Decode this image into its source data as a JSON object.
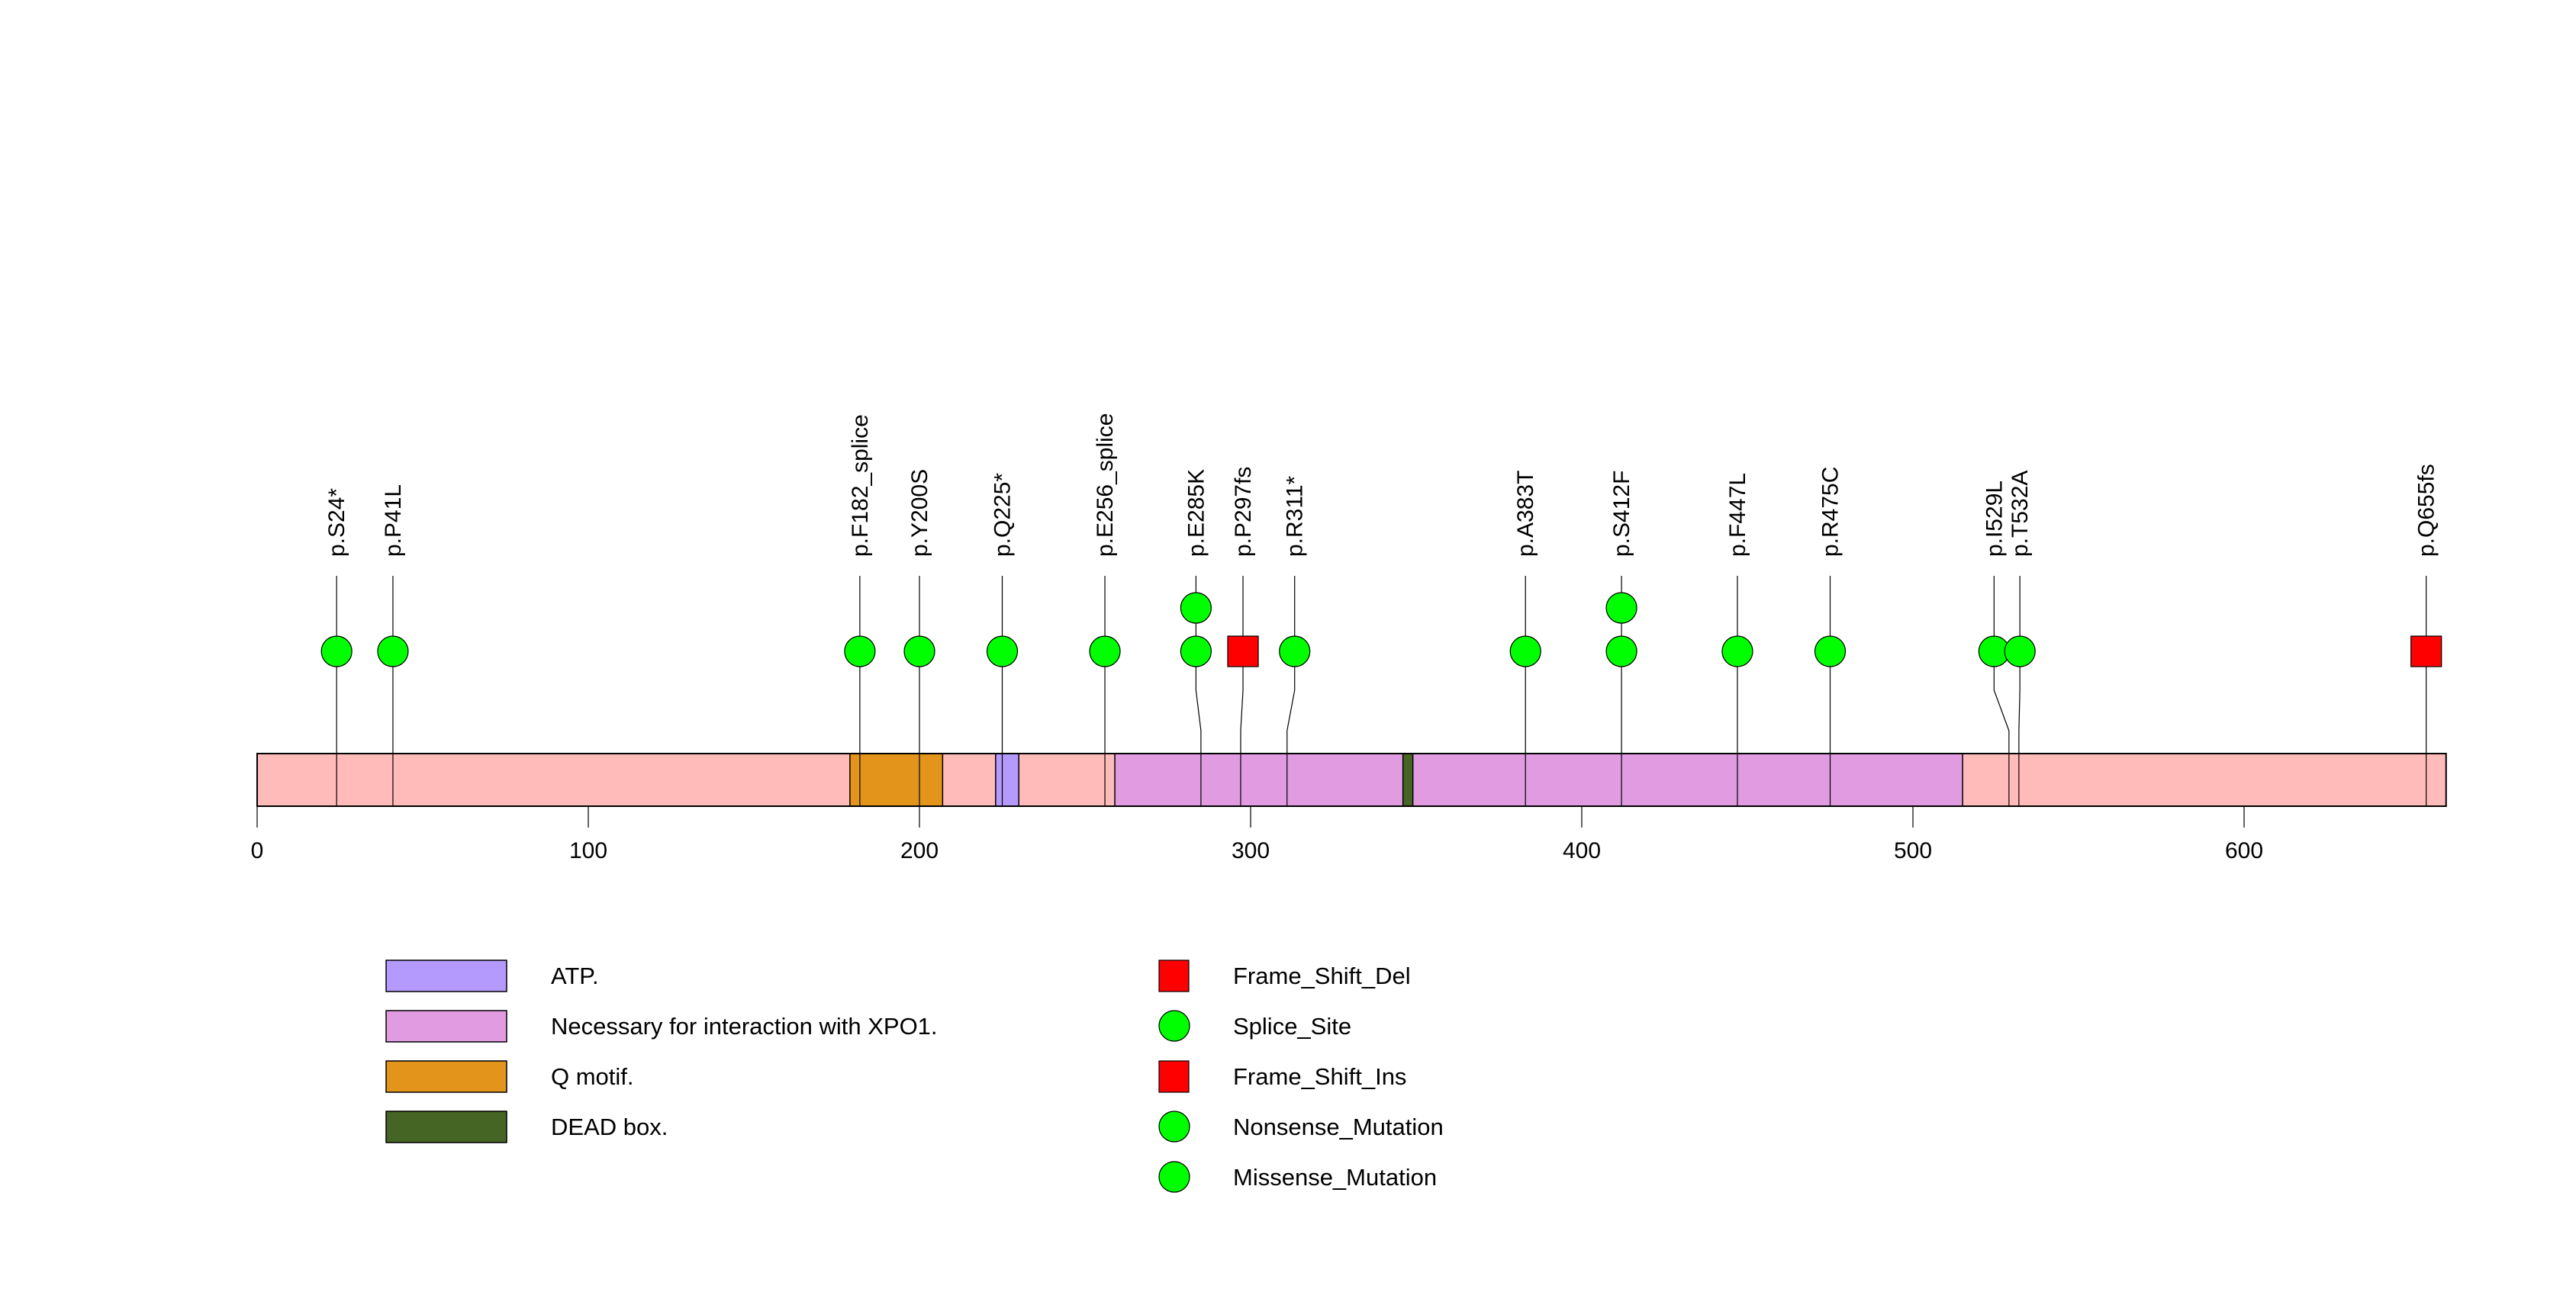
{
  "chart_data": {
    "type": "lollipop",
    "title": "",
    "xlabel": "",
    "ylabel": "",
    "protein_length": 661,
    "xlim": [
      0,
      661
    ],
    "x_ticks": [
      0,
      100,
      200,
      300,
      400,
      500,
      600
    ],
    "x_tick_labels": [
      "0",
      "100",
      "200",
      "300",
      "400",
      "500",
      "600"
    ],
    "backbone_color": "#ffbaba",
    "domains": [
      {
        "name": "Q motif.",
        "start": 179,
        "end": 207,
        "color": "#e3941a"
      },
      {
        "name": "ATP.",
        "start": 223,
        "end": 230,
        "color": "#b39afc"
      },
      {
        "name": "Necessary for interaction with XPO1.",
        "start": 259,
        "end": 515,
        "color": "#e19be1"
      },
      {
        "name": "DEAD box.",
        "start": 346,
        "end": 349,
        "color": "#446523"
      }
    ],
    "mutations": [
      {
        "label": "p.S24*",
        "position": 24,
        "display_position": 24,
        "count": 1,
        "type": "Nonsense_Mutation"
      },
      {
        "label": "p.P41L",
        "position": 41,
        "display_position": 41,
        "count": 1,
        "type": "Missense_Mutation"
      },
      {
        "label": "p.F182_splice",
        "position": 182,
        "display_position": 182,
        "count": 1,
        "type": "Splice_Site"
      },
      {
        "label": "p.Y200S",
        "position": 200,
        "display_position": 200,
        "count": 1,
        "type": "Missense_Mutation"
      },
      {
        "label": "p.Q225*",
        "position": 225,
        "display_position": 225,
        "count": 1,
        "type": "Nonsense_Mutation"
      },
      {
        "label": "p.E256_splice",
        "position": 256,
        "display_position": 256,
        "count": 1,
        "type": "Splice_Site"
      },
      {
        "label": "p.E285K",
        "position": 285,
        "display_position": 283.5,
        "count": 2,
        "type": "Missense_Mutation"
      },
      {
        "label": "p.P297fs",
        "position": 297,
        "display_position": 297.7,
        "count": 1,
        "type": "Frame_Shift_Del"
      },
      {
        "label": "p.R311*",
        "position": 311,
        "display_position": 313.3,
        "count": 1,
        "type": "Nonsense_Mutation"
      },
      {
        "label": "p.A383T",
        "position": 383,
        "display_position": 383,
        "count": 1,
        "type": "Missense_Mutation"
      },
      {
        "label": "p.S412F",
        "position": 412,
        "display_position": 412,
        "count": 2,
        "type": "Missense_Mutation"
      },
      {
        "label": "p.F447L",
        "position": 447,
        "display_position": 447,
        "count": 1,
        "type": "Missense_Mutation"
      },
      {
        "label": "p.R475C",
        "position": 475,
        "display_position": 475,
        "count": 1,
        "type": "Missense_Mutation"
      },
      {
        "label": "p.I529L",
        "position": 529,
        "display_position": 524.5,
        "count": 1,
        "type": "Missense_Mutation"
      },
      {
        "label": "p.T532A",
        "position": 532,
        "display_position": 532.3,
        "count": 1,
        "type": "Missense_Mutation"
      },
      {
        "label": "p.Q655fs",
        "position": 655,
        "display_position": 655,
        "count": 1,
        "type": "Frame_Shift_Ins"
      }
    ],
    "mutation_types": [
      {
        "name": "Frame_Shift_Del",
        "shape": "square",
        "color": "#ff0000"
      },
      {
        "name": "Splice_Site",
        "shape": "circle",
        "color": "#00ff00"
      },
      {
        "name": "Frame_Shift_Ins",
        "shape": "square",
        "color": "#ff0000"
      },
      {
        "name": "Nonsense_Mutation",
        "shape": "circle",
        "color": "#00ff00"
      },
      {
        "name": "Missense_Mutation",
        "shape": "circle",
        "color": "#00ff00"
      }
    ],
    "domain_legend": [
      {
        "name": "ATP.",
        "color": "#b39afc"
      },
      {
        "name": "Necessary for interaction with XPO1.",
        "color": "#e19be1"
      },
      {
        "name": "Q motif.",
        "color": "#e3941a"
      },
      {
        "name": "DEAD box.",
        "color": "#446523"
      }
    ],
    "legend_placement": "bottom"
  }
}
